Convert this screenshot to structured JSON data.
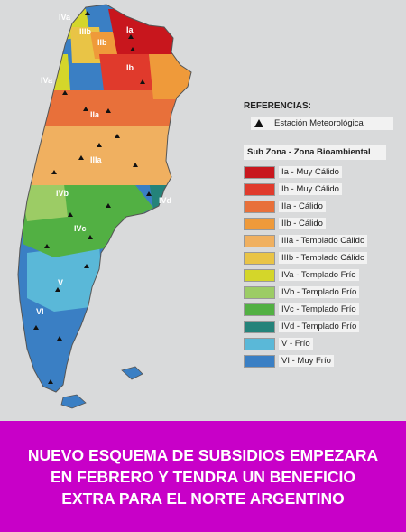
{
  "legend": {
    "references_title": "REFERENCIAS:",
    "station_label": "Estación Meteorológica",
    "subzone_title": "Sub Zona - Zona Bioambiental",
    "zones": [
      {
        "label": "Ia - Muy Cálido",
        "color": "#c8161d"
      },
      {
        "label": "Ib - Muy Cálido",
        "color": "#e03a2c"
      },
      {
        "label": "IIa - Cálido",
        "color": "#e8703a"
      },
      {
        "label": "IIb - Cálido",
        "color": "#ef9a3a"
      },
      {
        "label": "IIIa - Templado Cálido",
        "color": "#f0b060"
      },
      {
        "label": "IIIb - Templado Cálido",
        "color": "#e9c446"
      },
      {
        "label": "IVa - Templado Frío",
        "color": "#d4d62a"
      },
      {
        "label": "IVb - Templado Frío",
        "color": "#9ccc65"
      },
      {
        "label": "IVc - Templado Frío",
        "color": "#52b043"
      },
      {
        "label": "IVd - Templado Frío",
        "color": "#24837a"
      },
      {
        "label": "V - Frío",
        "color": "#5ab8d8"
      },
      {
        "label": "VI - Muy Frío",
        "color": "#3a7fc4"
      }
    ]
  },
  "map_labels": {
    "ia": "Ia",
    "ib": "Ib",
    "iva_n": "IVa",
    "iiib_n": "IIIb",
    "iib": "IIb",
    "iva_w": "IVa",
    "iia": "IIa",
    "iiia": "IIIa",
    "ivb": "IVb",
    "ivc": "IVc",
    "ivd": "IVd",
    "v": "V",
    "vi": "VI"
  },
  "banner": {
    "headline": "NUEVO ESQUEMA DE SUBSIDIOS EMPEZARA EN FEBRERO Y TENDRA UN BENEFICIO EXTRA PARA EL NORTE ARGENTINO",
    "background": "#c800c8"
  }
}
